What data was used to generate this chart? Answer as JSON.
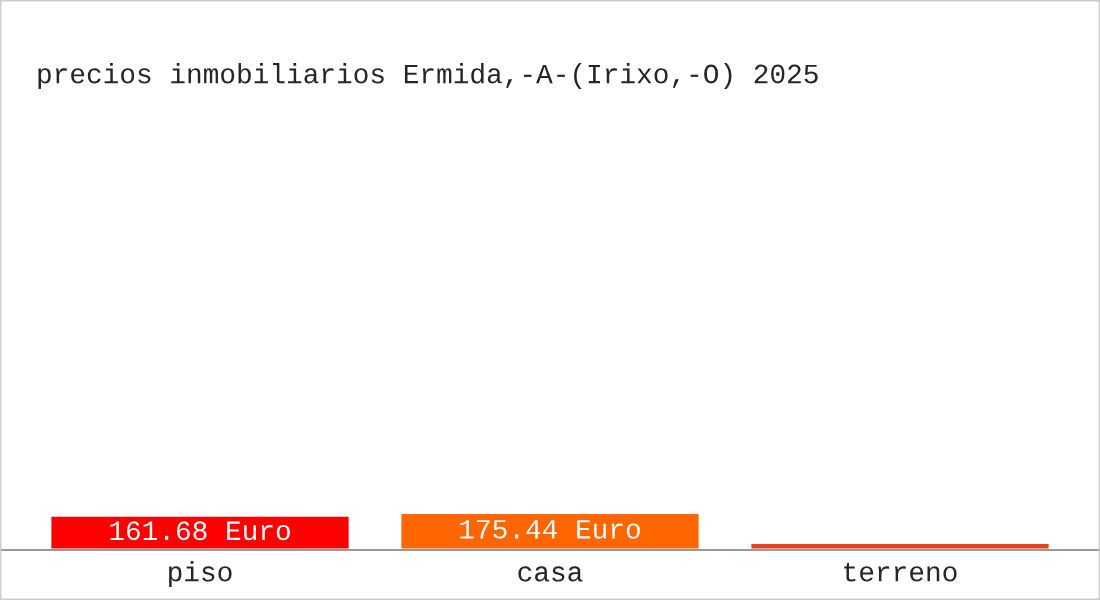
{
  "chart_data": {
    "type": "bar",
    "title": "precios inmobiliarios Ermida,-A-(Irixo,-O) 2025",
    "categories": [
      "piso",
      "casa",
      "terreno"
    ],
    "values": [
      161.68,
      175.44,
      35
    ],
    "colors": [
      "#ff0000",
      "#ff6600",
      "#e8401c"
    ],
    "value_labels": [
      "161.68 Euro",
      "175.44 Euro",
      null
    ],
    "tick_labels": "x",
    "grid": false,
    "legend": false
  }
}
